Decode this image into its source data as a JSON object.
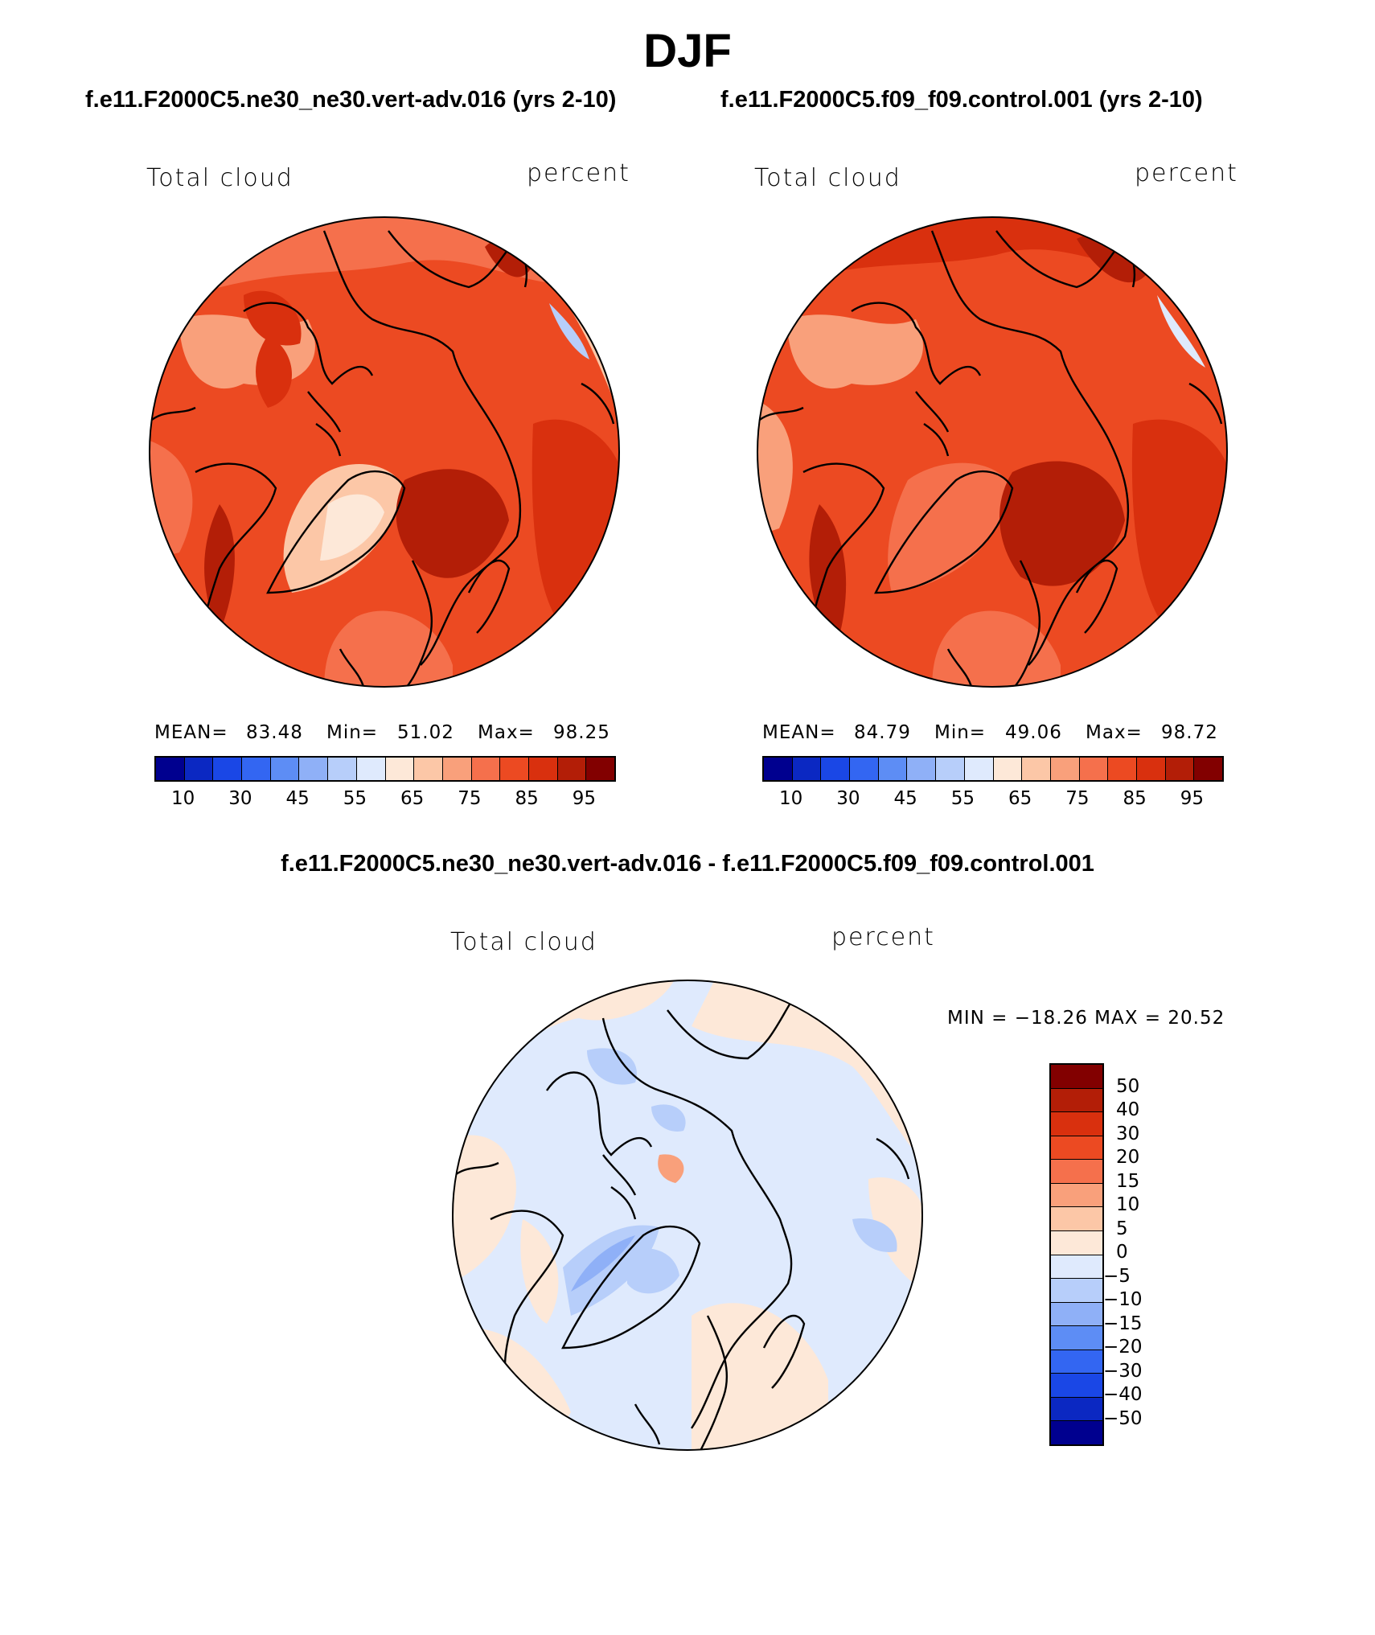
{
  "season": "DJF",
  "panels": [
    {
      "case": "f.e11.F2000C5.ne30_ne30.vert-adv.016 (yrs 2-10)",
      "variable": "Total cloud",
      "units": "percent",
      "stats": {
        "mean_label": "MEAN=",
        "mean": "83.48",
        "min_label": "Min=",
        "min": "51.02",
        "max_label": "Max=",
        "max": "98.25"
      }
    },
    {
      "case": "f.e11.F2000C5.f09_f09.control.001 (yrs 2-10)",
      "variable": "Total cloud",
      "units": "percent",
      "stats": {
        "mean_label": "MEAN=",
        "mean": "84.79",
        "min_label": "Min=",
        "min": "49.06",
        "max_label": "Max=",
        "max": "98.72"
      }
    }
  ],
  "diff_panel": {
    "title": "f.e11.F2000C5.ne30_ne30.vert-adv.016 - f.e11.F2000C5.f09_f09.control.001",
    "variable": "Total cloud",
    "units": "percent",
    "minmax_text": "MIN = −18.26 MAX =   20.52"
  },
  "abs_colorbar": {
    "colors": [
      "#00008f",
      "#0b28c2",
      "#1a47e6",
      "#3366f2",
      "#5d8df5",
      "#8fb0f7",
      "#b7cefa",
      "#dfeafd",
      "#fde8d8",
      "#fcc7a7",
      "#f9a07b",
      "#f5704c",
      "#ec4a22",
      "#d9300e",
      "#b31e07",
      "#820000"
    ],
    "ticks": [
      "10",
      "30",
      "45",
      "55",
      "65",
      "75",
      "85",
      "95"
    ]
  },
  "diff_colorbar": {
    "colors": [
      "#820000",
      "#b31e07",
      "#d9300e",
      "#ec4a22",
      "#f5704c",
      "#f9a07b",
      "#fcc7a7",
      "#fde8d8",
      "#dfeafd",
      "#b7cefa",
      "#8fb0f7",
      "#5d8df5",
      "#3366f2",
      "#1a47e6",
      "#0b28c2",
      "#00008f"
    ],
    "ticks": [
      "50",
      "40",
      "30",
      "20",
      "15",
      "10",
      "5",
      "0",
      "−5",
      "−10",
      "−15",
      "−20",
      "−30",
      "−40",
      "−50"
    ]
  }
}
